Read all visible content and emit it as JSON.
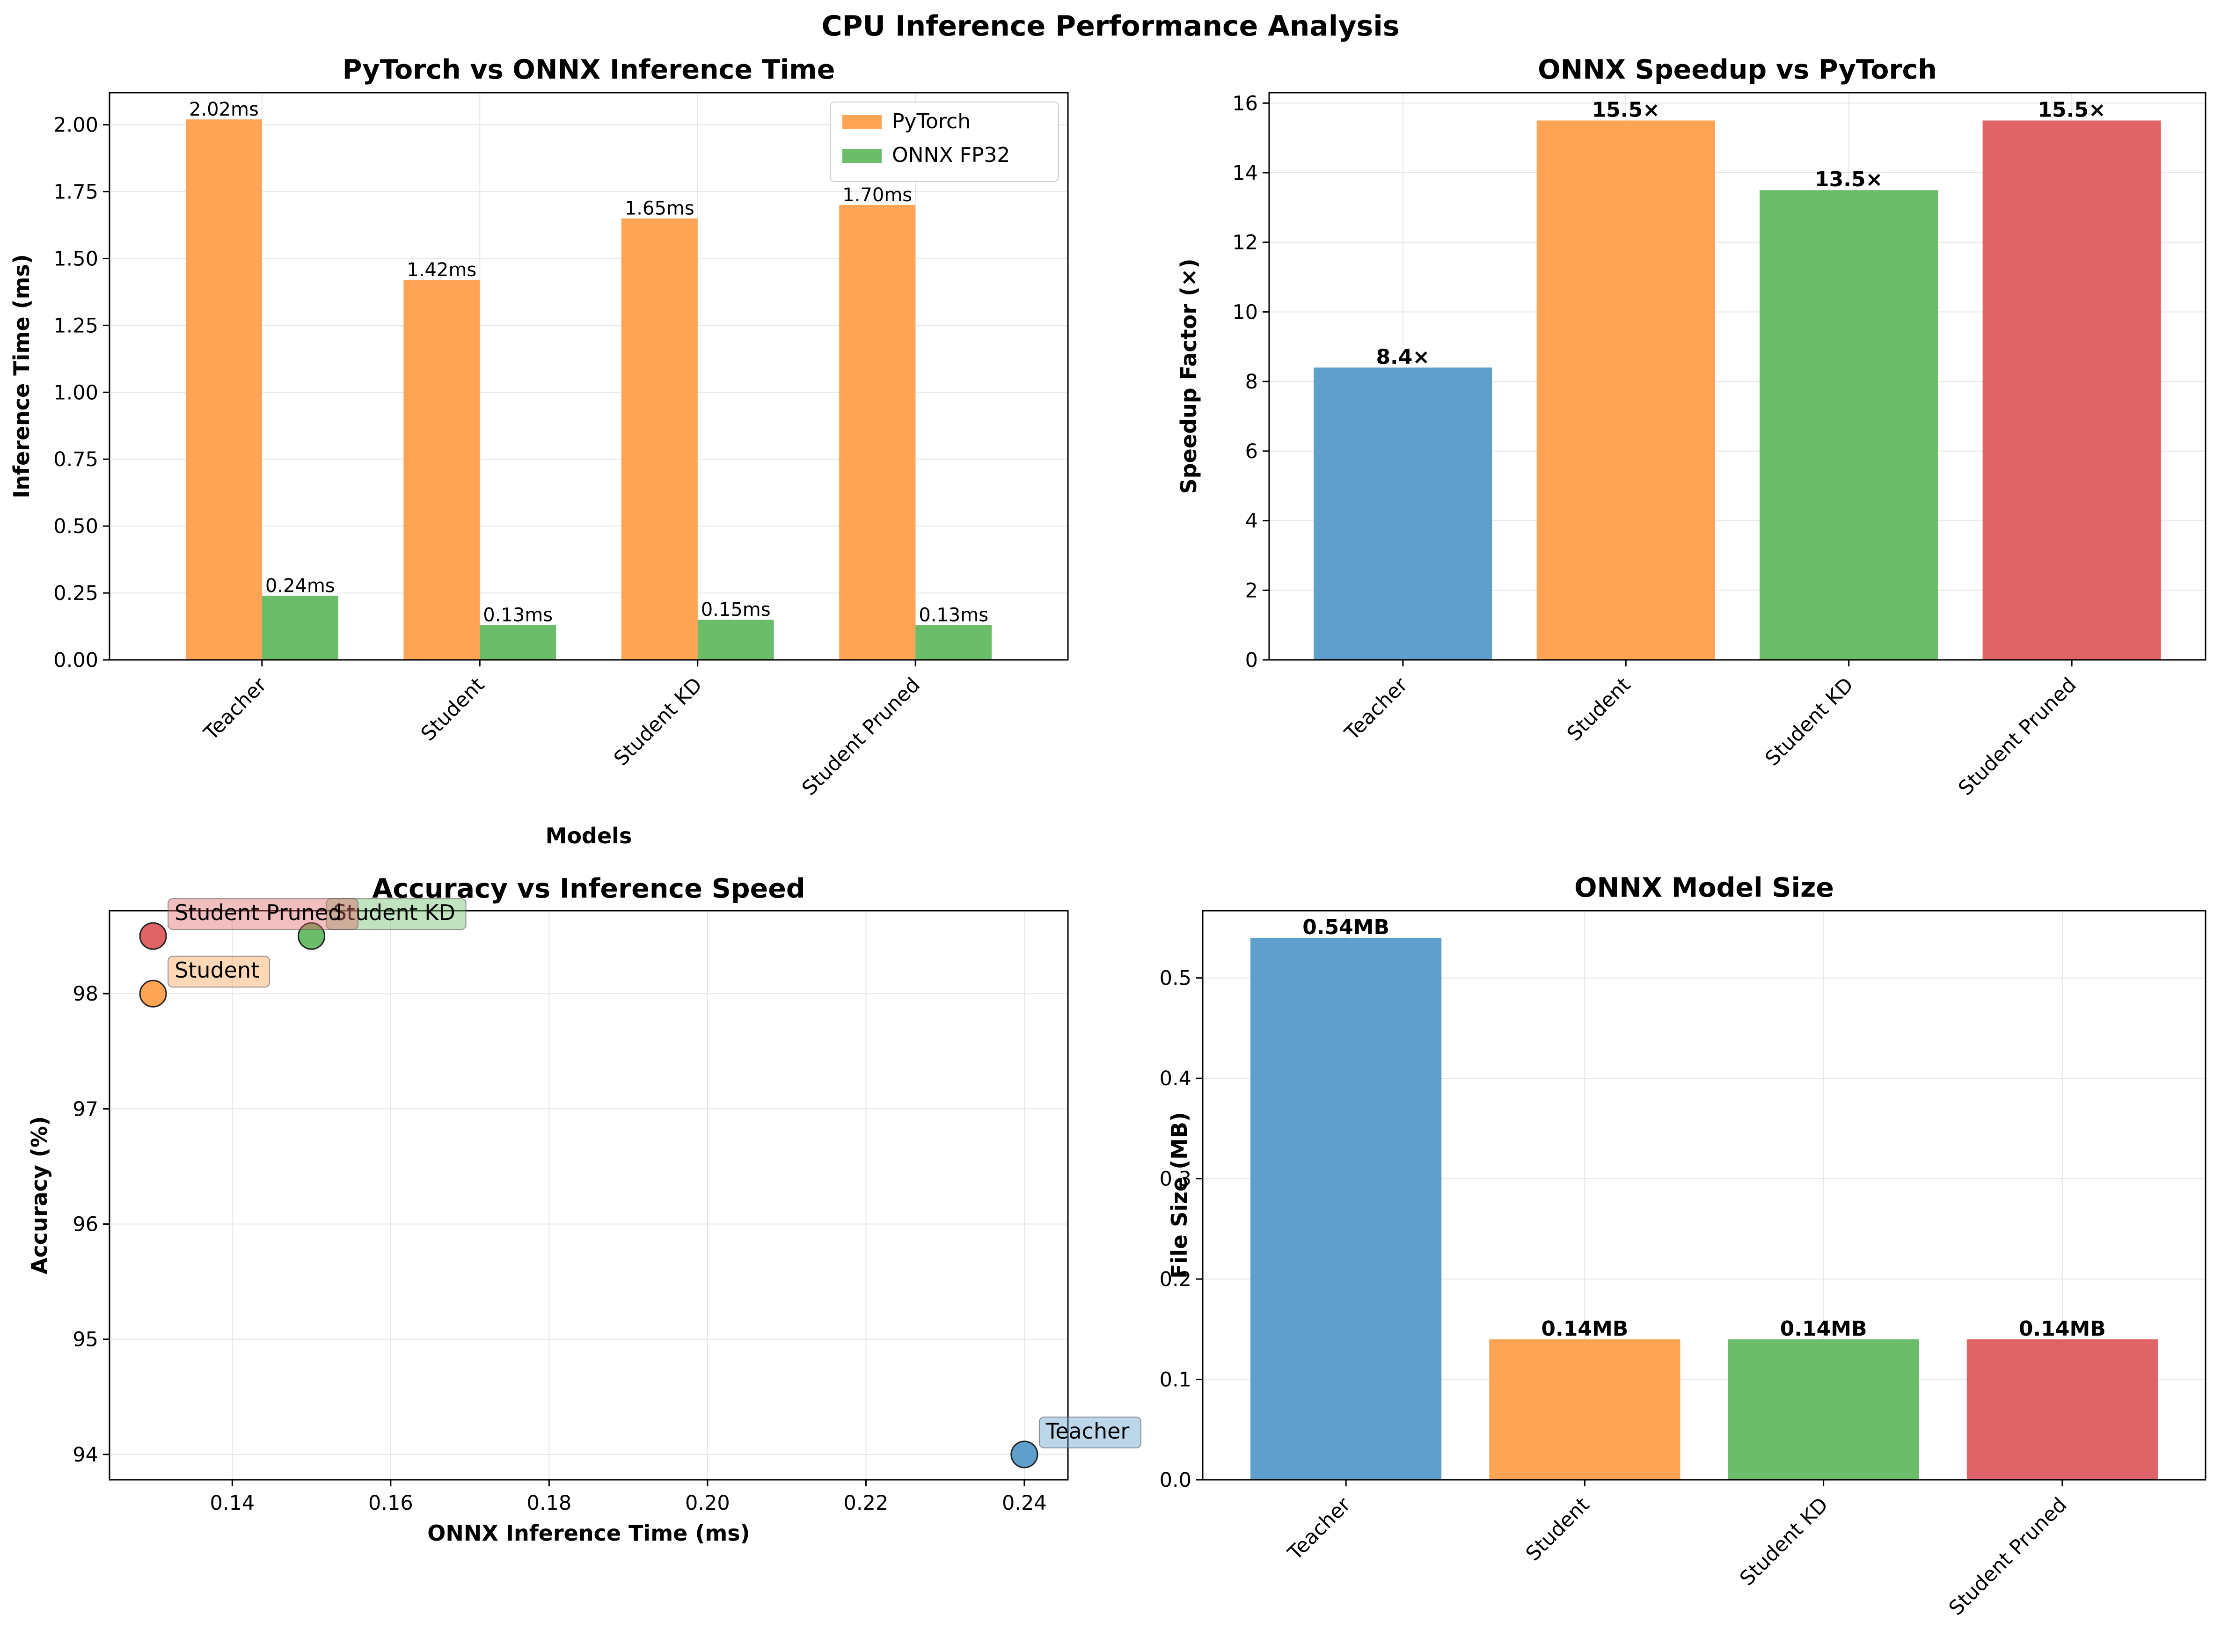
{
  "figure": {
    "title": "CPU Inference Performance Analysis"
  },
  "colors": {
    "blue": "#5f9fcc",
    "orange": "#ffa354",
    "green": "#6bbd69",
    "red": "#e06467",
    "grid": "#e6e6e6"
  },
  "chart_data": [
    {
      "id": "inference-time",
      "type": "bar",
      "title": "PyTorch vs ONNX Inference Time",
      "xlabel": "Models",
      "ylabel": "Inference Time (ms)",
      "categories": [
        "Teacher",
        "Student",
        "Student KD",
        "Student Pruned"
      ],
      "ylim": [
        0,
        2.12
      ],
      "yticks": [
        "0.00",
        "0.25",
        "0.50",
        "0.75",
        "1.00",
        "1.25",
        "1.50",
        "1.75",
        "2.00"
      ],
      "grid": true,
      "legend": "top-right",
      "series": [
        {
          "name": "PyTorch",
          "color": "#ffa354",
          "values": [
            2.02,
            1.42,
            1.65,
            1.7
          ],
          "labels": [
            "2.02ms",
            "1.42ms",
            "1.65ms",
            "1.70ms"
          ]
        },
        {
          "name": "ONNX FP32",
          "color": "#6bbd69",
          "values": [
            0.24,
            0.13,
            0.15,
            0.13
          ],
          "labels": [
            "0.24ms",
            "0.13ms",
            "0.15ms",
            "0.13ms"
          ]
        }
      ]
    },
    {
      "id": "speedup",
      "type": "bar",
      "title": "ONNX Speedup vs PyTorch",
      "xlabel": "",
      "ylabel": "Speedup Factor (×)",
      "categories": [
        "Teacher",
        "Student",
        "Student KD",
        "Student Pruned"
      ],
      "values": [
        8.4,
        15.5,
        13.5,
        15.5
      ],
      "labels": [
        "8.4×",
        "15.5×",
        "13.5×",
        "15.5×"
      ],
      "colors": [
        "#5f9fcc",
        "#ffa354",
        "#6bbd69",
        "#e06467"
      ],
      "ylim": [
        0,
        16.3
      ],
      "yticks": [
        "0",
        "2",
        "4",
        "6",
        "8",
        "10",
        "12",
        "14",
        "16"
      ],
      "grid": true
    },
    {
      "id": "accuracy-speed",
      "type": "scatter",
      "title": "Accuracy vs Inference Speed",
      "xlabel": "ONNX Inference Time (ms)",
      "ylabel": "Accuracy (%)",
      "xlim": [
        0.1245,
        0.2455
      ],
      "ylim": [
        93.78,
        98.72
      ],
      "xticks": [
        "0.14",
        "0.16",
        "0.18",
        "0.20",
        "0.22",
        "0.24"
      ],
      "yticks": [
        "94",
        "95",
        "96",
        "97",
        "98"
      ],
      "grid": true,
      "points": [
        {
          "name": "Teacher",
          "x": 0.24,
          "y": 94.0,
          "color": "#5f9fcc"
        },
        {
          "name": "Student",
          "x": 0.13,
          "y": 98.0,
          "color": "#ffa354"
        },
        {
          "name": "Student KD",
          "x": 0.15,
          "y": 98.5,
          "color": "#6bbd69"
        },
        {
          "name": "Student Pruned",
          "x": 0.13,
          "y": 98.5,
          "color": "#e06467"
        }
      ]
    },
    {
      "id": "model-size",
      "type": "bar",
      "title": "ONNX Model Size",
      "xlabel": "",
      "ylabel": "File Size (MB)",
      "categories": [
        "Teacher",
        "Student",
        "Student KD",
        "Student Pruned"
      ],
      "values": [
        0.54,
        0.14,
        0.14,
        0.14
      ],
      "labels": [
        "0.54MB",
        "0.14MB",
        "0.14MB",
        "0.14MB"
      ],
      "colors": [
        "#5f9fcc",
        "#ffa354",
        "#6bbd69",
        "#e06467"
      ],
      "ylim": [
        0,
        0.567
      ],
      "yticks": [
        "0.0",
        "0.1",
        "0.2",
        "0.3",
        "0.4",
        "0.5"
      ],
      "grid": true
    }
  ]
}
